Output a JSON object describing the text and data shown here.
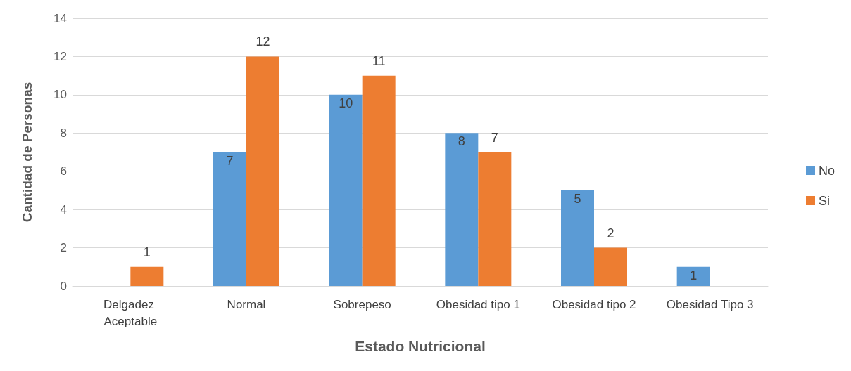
{
  "chart_data": {
    "type": "bar",
    "xlabel": "Estado Nutricional",
    "ylabel": "Cantidad de Personas",
    "categories": [
      "Delgadez Aceptable",
      "Normal",
      "Sobrepeso",
      "Obesidad tipo 1",
      "Obesidad tipo 2",
      "Obesidad Tipo 3"
    ],
    "series": [
      {
        "name": "No",
        "color": "#5b9bd5",
        "values": [
          null,
          7,
          10,
          8,
          5,
          1
        ]
      },
      {
        "name": "Si",
        "color": "#ed7d31",
        "values": [
          1,
          12,
          11,
          7,
          2,
          null
        ]
      }
    ],
    "ylim": [
      0,
      14
    ],
    "yticks": [
      0,
      2,
      4,
      6,
      8,
      10,
      12,
      14
    ],
    "grid": "y",
    "legend": "right",
    "data_labels": true
  }
}
